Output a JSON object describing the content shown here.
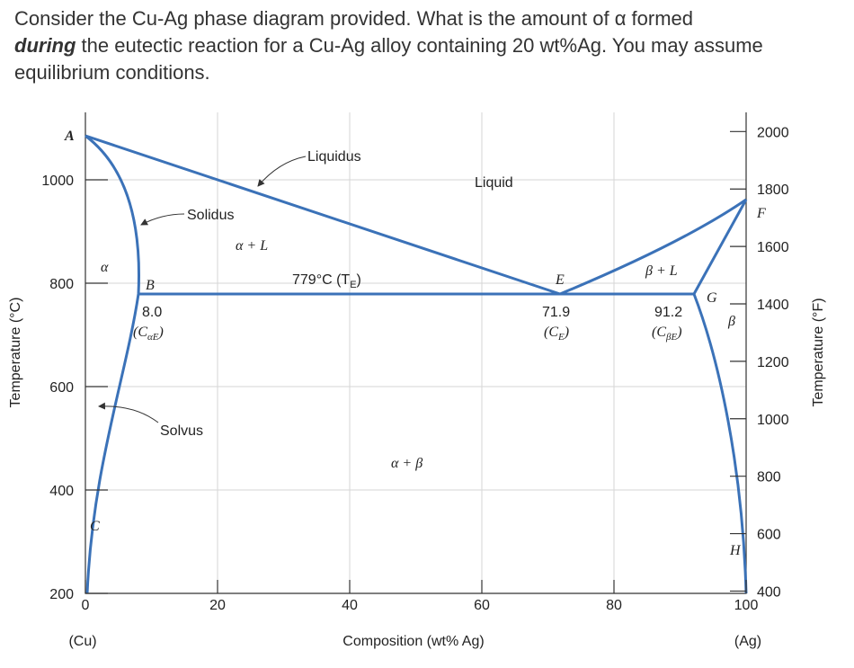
{
  "question": {
    "parts": [
      "Consider the Cu-Ag phase diagram provided.  What is the amount of α formed",
      "during",
      " the eutectic reaction for a Cu-Ag alloy containing 20 wt%Ag.  You may assume equilibrium conditions."
    ]
  },
  "diagram": {
    "y_label_left": "Temperature (°C)",
    "y_label_right": "Temperature (°F)",
    "x_label": "Composition (wt% Ag)",
    "left_ticks": [
      "1000",
      "800",
      "600",
      "400",
      "200"
    ],
    "right_ticks": [
      "2000",
      "1800",
      "1600",
      "1400",
      "1200",
      "1000",
      "800",
      "600",
      "400"
    ],
    "bottom_ticks": [
      "0",
      "20",
      "40",
      "60",
      "80",
      "100"
    ],
    "left_end": "(Cu)",
    "right_end": "(Ag)",
    "regions": {
      "alpha": "α",
      "alpha_l": "α + L",
      "liquid": "Liquid",
      "beta_l": "β + L",
      "beta": "β",
      "alpha_beta": "α + β"
    },
    "points": {
      "a": "A",
      "b": "B",
      "c": "C",
      "e": "E",
      "f": "F",
      "g": "G",
      "h": "H"
    },
    "callouts": {
      "liquidus": "Liquidus",
      "solidus": "Solidus",
      "solvus": "Solvus"
    },
    "eutectic_temp": {
      "main": "779°C (T",
      "sub": "E",
      "end": ")"
    },
    "c_alpha": {
      "value": "8.0",
      "main": "(C",
      "sub": "αE",
      "end": ")"
    },
    "c_e": {
      "value": "71.9",
      "main": "(C",
      "sub": "E",
      "end": ")"
    },
    "c_beta": {
      "value": "91.2",
      "main": "(C",
      "sub": "βE",
      "end": ")"
    }
  }
}
